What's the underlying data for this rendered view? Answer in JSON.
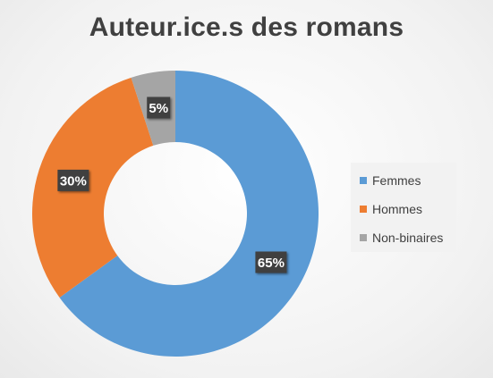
{
  "chart_data": {
    "type": "pie",
    "subtype": "donut",
    "title": "Auteur.ice.s des romans",
    "categories": [
      "Femmes",
      "Hommes",
      "Non-binaires"
    ],
    "values": [
      65,
      30,
      5
    ],
    "data_labels": [
      "65%",
      "30%",
      "5%"
    ],
    "colors": [
      "#5b9bd5",
      "#ed7d31",
      "#a5a5a5"
    ],
    "legend_position": "right"
  }
}
